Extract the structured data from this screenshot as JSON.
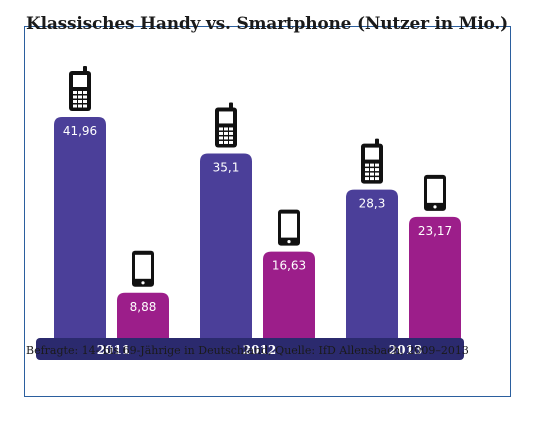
{
  "title": "Klassisches Handy vs. Smartphone (Nutzer in Mio.)",
  "source": "Befragte: 14- bis 69-Jährige in Deutschland, Quelle: IfD Allensbach, 2009–2013",
  "colors": {
    "handy": "#4b3f99",
    "smartphone": "#9c1e8a",
    "band": "#2b2a6e",
    "frame": "#2b5f9e",
    "icon": "#111111"
  },
  "chart_data": {
    "type": "bar",
    "categories": [
      "2011",
      "2012",
      "2013"
    ],
    "series": [
      {
        "name": "",
        "icon": "classic-phone-icon",
        "values": [
          41.96,
          35.1,
          28.3
        ],
        "labels": [
          "41,96",
          "35,1",
          "28,3"
        ]
      },
      {
        "name": "",
        "icon": "smartphone-icon",
        "values": [
          8.88,
          16.63,
          23.17
        ],
        "labels": [
          "8,88",
          "16,63",
          "23,17"
        ]
      }
    ],
    "xlabel": "",
    "ylabel": "",
    "ylim": [
      0,
      41.96
    ],
    "grid": false,
    "legend": "none"
  }
}
